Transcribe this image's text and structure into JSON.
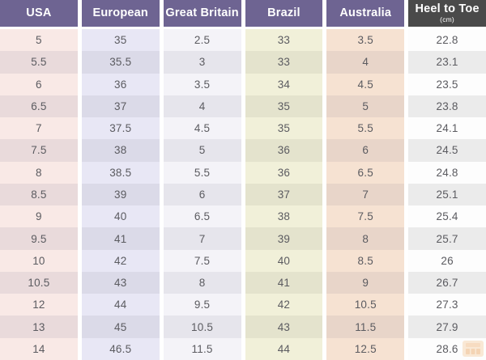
{
  "table": {
    "headers": [
      {
        "label": "USA",
        "bg": "#6e6492"
      },
      {
        "label": "European",
        "bg": "#6e6492"
      },
      {
        "label": "Great Britain",
        "bg": "#6e6492"
      },
      {
        "label": "Brazil",
        "bg": "#6e6492"
      },
      {
        "label": "Australia",
        "bg": "#6e6492"
      },
      {
        "label": "Heel to Toe",
        "sublabel": "(cm)",
        "bg": "#4a4a4a"
      }
    ],
    "header_text_color": "#ffffff",
    "cell_text_color": "#5b5b60",
    "column_row_colors": [
      [
        "#f9e9e6",
        "#e9dadb"
      ],
      [
        "#e8e7f5",
        "#dbdae8"
      ],
      [
        "#f4f3f8",
        "#e6e5ec"
      ],
      [
        "#f1f0d9",
        "#e4e3cd"
      ],
      [
        "#f6e2d2",
        "#e8d5c9"
      ],
      [
        "#fdfdfd",
        "#ebebeb"
      ]
    ]
  },
  "chart_data": {
    "type": "table",
    "columns": [
      "USA",
      "European",
      "Great Britain",
      "Brazil",
      "Australia",
      "Heel to Toe (cm)"
    ],
    "rows": [
      [
        "5",
        "35",
        "2.5",
        "33",
        "3.5",
        "22.8"
      ],
      [
        "5.5",
        "35.5",
        "3",
        "33",
        "4",
        "23.1"
      ],
      [
        "6",
        "36",
        "3.5",
        "34",
        "4.5",
        "23.5"
      ],
      [
        "6.5",
        "37",
        "4",
        "35",
        "5",
        "23.8"
      ],
      [
        "7",
        "37.5",
        "4.5",
        "35",
        "5.5",
        "24.1"
      ],
      [
        "7.5",
        "38",
        "5",
        "36",
        "6",
        "24.5"
      ],
      [
        "8",
        "38.5",
        "5.5",
        "36",
        "6.5",
        "24.8"
      ],
      [
        "8.5",
        "39",
        "6",
        "37",
        "7",
        "25.1"
      ],
      [
        "9",
        "40",
        "6.5",
        "38",
        "7.5",
        "25.4"
      ],
      [
        "9.5",
        "41",
        "7",
        "39",
        "8",
        "25.7"
      ],
      [
        "10",
        "42",
        "7.5",
        "40",
        "8.5",
        "26"
      ],
      [
        "10.5",
        "43",
        "8",
        "41",
        "9",
        "26.7"
      ],
      [
        "12",
        "44",
        "9.5",
        "42",
        "10.5",
        "27.3"
      ],
      [
        "13",
        "45",
        "10.5",
        "43",
        "11.5",
        "27.9"
      ],
      [
        "14",
        "46.5",
        "11.5",
        "44",
        "12.5",
        "28.6"
      ]
    ]
  },
  "watermark": {
    "color_base": "#f6d7b5",
    "color_squares": "#eeb37a"
  }
}
